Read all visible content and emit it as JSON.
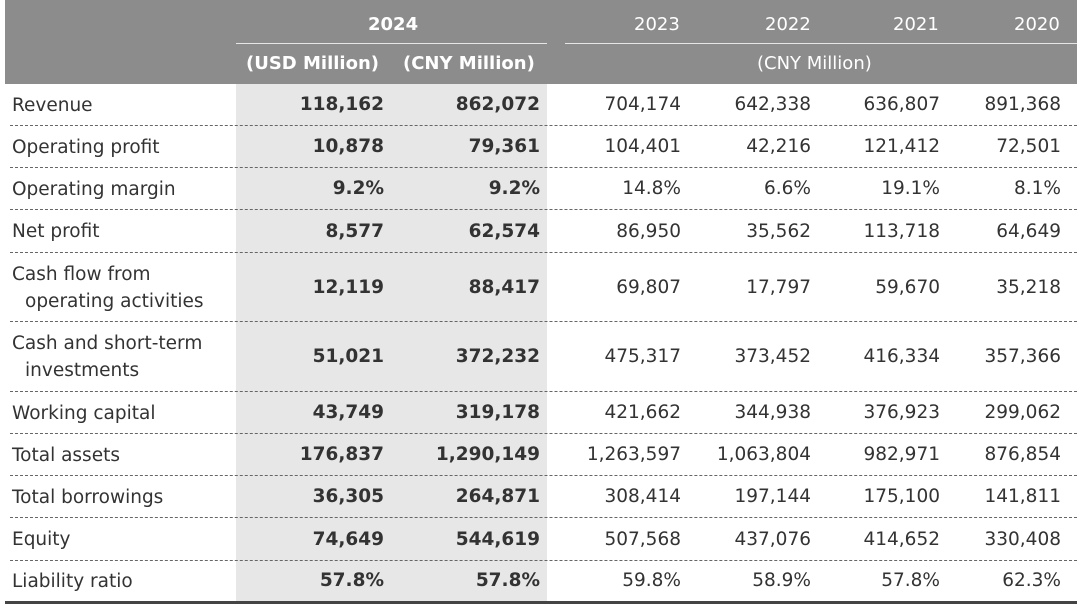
{
  "header": {
    "year_2024": "2024",
    "usd_unit": "(USD Million)",
    "cny_unit_2024": "(CNY Million)",
    "years": [
      "2023",
      "2022",
      "2021",
      "2020"
    ],
    "cny_unit_prior": "(CNY Million)"
  },
  "rows": [
    {
      "label": [
        "Revenue"
      ],
      "usd": "118,162",
      "cny2024": "862,072",
      "y2023": "704,174",
      "y2022": "642,338",
      "y2021": "636,807",
      "y2020": "891,368"
    },
    {
      "label": [
        "Operating profit"
      ],
      "usd": "10,878",
      "cny2024": "79,361",
      "y2023": "104,401",
      "y2022": "42,216",
      "y2021": "121,412",
      "y2020": "72,501"
    },
    {
      "label": [
        "Operating margin"
      ],
      "usd": "9.2%",
      "cny2024": "9.2%",
      "y2023": "14.8%",
      "y2022": "6.6%",
      "y2021": "19.1%",
      "y2020": "8.1%"
    },
    {
      "label": [
        "Net profit"
      ],
      "usd": "8,577",
      "cny2024": "62,574",
      "y2023": "86,950",
      "y2022": "35,562",
      "y2021": "113,718",
      "y2020": "64,649"
    },
    {
      "label": [
        "Cash flow from",
        "operating activities"
      ],
      "usd": "12,119",
      "cny2024": "88,417",
      "y2023": "69,807",
      "y2022": "17,797",
      "y2021": "59,670",
      "y2020": "35,218"
    },
    {
      "label": [
        "Cash and short-term",
        "investments"
      ],
      "usd": "51,021",
      "cny2024": "372,232",
      "y2023": "475,317",
      "y2022": "373,452",
      "y2021": "416,334",
      "y2020": "357,366"
    },
    {
      "label": [
        "Working capital"
      ],
      "usd": "43,749",
      "cny2024": "319,178",
      "y2023": "421,662",
      "y2022": "344,938",
      "y2021": "376,923",
      "y2020": "299,062"
    },
    {
      "label": [
        "Total assets"
      ],
      "usd": "176,837",
      "cny2024": "1,290,149",
      "y2023": "1,263,597",
      "y2022": "1,063,804",
      "y2021": "982,971",
      "y2020": "876,854"
    },
    {
      "label": [
        "Total borrowings"
      ],
      "usd": "36,305",
      "cny2024": "264,871",
      "y2023": "308,414",
      "y2022": "197,144",
      "y2021": "175,100",
      "y2020": "141,811"
    },
    {
      "label": [
        "Equity"
      ],
      "usd": "74,649",
      "cny2024": "544,619",
      "y2023": "507,568",
      "y2022": "437,076",
      "y2021": "414,652",
      "y2020": "330,408"
    },
    {
      "label": [
        "Liability ratio"
      ],
      "usd": "57.8%",
      "cny2024": "57.8%",
      "y2023": "59.8%",
      "y2022": "58.9%",
      "y2021": "57.8%",
      "y2020": "62.3%"
    }
  ]
}
